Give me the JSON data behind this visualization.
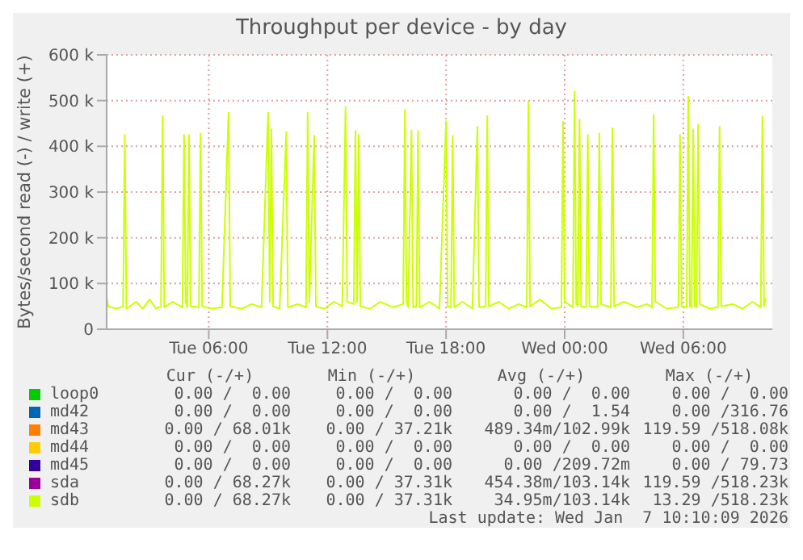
{
  "chart_data": {
    "type": "line",
    "title": "Throughput per device - by day",
    "ylabel": "Bytes/second read (-) / write (+)",
    "x": [
      "2026-01-06T00:50",
      "2026-01-06T00:55",
      "2026-01-06T01:20",
      "2026-01-06T01:40",
      "2026-01-06T01:45",
      "2026-01-06T01:50",
      "2026-01-06T02:20",
      "2026-01-06T02:40",
      "2026-01-06T03:00",
      "2026-01-06T03:20",
      "2026-01-06T03:35",
      "2026-01-06T03:40",
      "2026-01-06T03:45",
      "2026-01-06T04:10",
      "2026-01-06T04:40",
      "2026-01-06T04:45",
      "2026-01-06T04:50",
      "2026-01-06T04:55",
      "2026-01-06T05:00",
      "2026-01-06T05:05",
      "2026-01-06T05:30",
      "2026-01-06T05:35",
      "2026-01-06T05:40",
      "2026-01-06T06:10",
      "2026-01-06T06:40",
      "2026-01-06T07:00",
      "2026-01-06T07:05",
      "2026-01-06T07:40",
      "2026-01-06T08:10",
      "2026-01-06T08:40",
      "2026-01-06T09:00",
      "2026-01-06T09:05",
      "2026-01-06T09:10",
      "2026-01-06T09:15",
      "2026-01-06T09:35",
      "2026-01-06T09:55",
      "2026-01-06T10:00",
      "2026-01-06T10:30",
      "2026-01-06T10:55",
      "2026-01-06T11:00",
      "2026-01-06T11:05",
      "2026-01-06T11:20",
      "2026-01-06T11:25",
      "2026-01-06T11:50",
      "2026-01-06T12:20",
      "2026-01-06T12:45",
      "2026-01-06T12:55",
      "2026-01-06T13:00",
      "2026-01-06T13:20",
      "2026-01-06T13:25",
      "2026-01-06T13:30",
      "2026-01-06T13:35",
      "2026-01-06T13:40",
      "2026-01-06T14:10",
      "2026-01-06T14:40",
      "2026-01-06T15:20",
      "2026-01-06T15:50",
      "2026-01-06T15:55",
      "2026-01-06T16:00",
      "2026-01-06T16:05",
      "2026-01-06T16:15",
      "2026-01-06T16:20",
      "2026-01-06T16:30",
      "2026-01-06T16:35",
      "2026-01-06T16:40",
      "2026-01-06T17:10",
      "2026-01-06T17:40",
      "2026-01-06T18:00",
      "2026-01-06T18:05",
      "2026-01-06T18:15",
      "2026-01-06T18:20",
      "2026-01-06T18:25",
      "2026-01-06T18:50",
      "2026-01-06T19:20",
      "2026-01-06T19:35",
      "2026-01-06T19:40",
      "2026-01-06T20:00",
      "2026-01-06T20:05",
      "2026-01-06T20:10",
      "2026-01-06T20:40",
      "2026-01-06T21:10",
      "2026-01-06T21:40",
      "2026-01-06T22:05",
      "2026-01-06T22:10",
      "2026-01-06T22:15",
      "2026-01-06T22:45",
      "2026-01-06T23:20",
      "2026-01-06T23:50",
      "2026-01-06T23:55",
      "2026-01-07T00:00",
      "2026-01-07T00:25",
      "2026-01-07T00:30",
      "2026-01-07T00:35",
      "2026-01-07T00:40",
      "2026-01-07T00:45",
      "2026-01-07T00:50",
      "2026-01-07T01:05",
      "2026-01-07T01:10",
      "2026-01-07T01:15",
      "2026-01-07T01:40",
      "2026-01-07T01:45",
      "2026-01-07T01:50",
      "2026-01-07T02:20",
      "2026-01-07T02:25",
      "2026-01-07T02:30",
      "2026-01-07T03:00",
      "2026-01-07T03:40",
      "2026-01-07T04:10",
      "2026-01-07T04:25",
      "2026-01-07T04:30",
      "2026-01-07T04:35",
      "2026-01-07T05:10",
      "2026-01-07T05:45",
      "2026-01-07T05:50",
      "2026-01-07T05:55",
      "2026-01-07T06:10",
      "2026-01-07T06:15",
      "2026-01-07T06:20",
      "2026-01-07T06:25",
      "2026-01-07T06:30",
      "2026-01-07T06:35",
      "2026-01-07T06:40",
      "2026-01-07T06:45",
      "2026-01-07T06:50",
      "2026-01-07T07:20",
      "2026-01-07T07:45",
      "2026-01-07T07:50",
      "2026-01-07T07:55",
      "2026-01-07T08:30",
      "2026-01-07T09:00",
      "2026-01-07T09:30",
      "2026-01-07T09:55",
      "2026-01-07T10:00",
      "2026-01-07T10:05",
      "2026-01-07T10:10"
    ],
    "series": [
      {
        "name": "loop0",
        "color": "#00cc00",
        "values": [
          null,
          null,
          null,
          null,
          null,
          null,
          null,
          null,
          null,
          null,
          null,
          null,
          null,
          null,
          null,
          null,
          null,
          null,
          null,
          null,
          null,
          null,
          null,
          null,
          null,
          null,
          null,
          null,
          null,
          null,
          null,
          null,
          null,
          null,
          null,
          null,
          null,
          null,
          null,
          null,
          null,
          null,
          null,
          null,
          null,
          null,
          null,
          null,
          null,
          null,
          null,
          null,
          null,
          null,
          null,
          null,
          null,
          null,
          null,
          null,
          null,
          null,
          null,
          null,
          null,
          null,
          null,
          null,
          null,
          null,
          null,
          null,
          null,
          null,
          null,
          null,
          null,
          null,
          null,
          null,
          null,
          null,
          null,
          null,
          null,
          null,
          null,
          null,
          null,
          null,
          null,
          null,
          null,
          null,
          null,
          null,
          null,
          null,
          null,
          null,
          null,
          null,
          null,
          null,
          null,
          null,
          null,
          null,
          null,
          null,
          null,
          null,
          null,
          null,
          null,
          null,
          null,
          null,
          null,
          null,
          null,
          null,
          null,
          null,
          null,
          null,
          null,
          null,
          null,
          null,
          null,
          null,
          null,
          null,
          null
        ]
      },
      {
        "name": "md42",
        "color": "#0066b3",
        "values": [
          null,
          null,
          null,
          null,
          null,
          null,
          null,
          null,
          null,
          null,
          null,
          null,
          null,
          null,
          null,
          null,
          null,
          null,
          null,
          null,
          null,
          null,
          null,
          null,
          null,
          null,
          null,
          null,
          null,
          null,
          null,
          null,
          null,
          null,
          null,
          null,
          null,
          null,
          null,
          null,
          null,
          null,
          null,
          null,
          null,
          null,
          null,
          null,
          null,
          null,
          null,
          null,
          null,
          null,
          null,
          null,
          null,
          null,
          null,
          null,
          null,
          null,
          null,
          null,
          null,
          null,
          null,
          null,
          null,
          null,
          null,
          null,
          null,
          null,
          null,
          null,
          null,
          null,
          null,
          null,
          null,
          null,
          null,
          null,
          null,
          null,
          null,
          null,
          null,
          null,
          null,
          null,
          null,
          null,
          null,
          null,
          null,
          null,
          null,
          null,
          null,
          null,
          null,
          null,
          null,
          null,
          null,
          null,
          null,
          null,
          null,
          null,
          null,
          null,
          null,
          null,
          null,
          null,
          null,
          null,
          null,
          null,
          null,
          null,
          null,
          null,
          null,
          null,
          null,
          null,
          null,
          null,
          null,
          null,
          null
        ]
      },
      {
        "name": "md43",
        "color": "#ff8000",
        "values": [
          null,
          null,
          null,
          null,
          null,
          null,
          null,
          null,
          null,
          null,
          null,
          null,
          null,
          null,
          null,
          null,
          null,
          null,
          null,
          null,
          null,
          null,
          null,
          null,
          null,
          null,
          null,
          null,
          null,
          null,
          null,
          null,
          null,
          null,
          null,
          null,
          null,
          null,
          null,
          null,
          null,
          null,
          null,
          null,
          null,
          null,
          null,
          null,
          null,
          null,
          null,
          null,
          null,
          null,
          null,
          null,
          null,
          null,
          null,
          null,
          null,
          null,
          null,
          null,
          null,
          null,
          null,
          null,
          null,
          null,
          null,
          null,
          null,
          null,
          null,
          null,
          null,
          null,
          null,
          null,
          null,
          null,
          null,
          null,
          null,
          null,
          null,
          null,
          null,
          null,
          null,
          null,
          null,
          null,
          null,
          null,
          null,
          null,
          null,
          null,
          null,
          null,
          null,
          null,
          null,
          null,
          null,
          null,
          null,
          null,
          null,
          null,
          null,
          null,
          null,
          null,
          null,
          null,
          null,
          null,
          null,
          null,
          null,
          null,
          null,
          null,
          null,
          null,
          null,
          null,
          null,
          null,
          null,
          null,
          null
        ]
      },
      {
        "name": "md44",
        "color": "#ffcc00",
        "values": [
          null,
          null,
          null,
          null,
          null,
          null,
          null,
          null,
          null,
          null,
          null,
          null,
          null,
          null,
          null,
          null,
          null,
          null,
          null,
          null,
          null,
          null,
          null,
          null,
          null,
          null,
          null,
          null,
          null,
          null,
          null,
          null,
          null,
          null,
          null,
          null,
          null,
          null,
          null,
          null,
          null,
          null,
          null,
          null,
          null,
          null,
          null,
          null,
          null,
          null,
          null,
          null,
          null,
          null,
          null,
          null,
          null,
          null,
          null,
          null,
          null,
          null,
          null,
          null,
          null,
          null,
          null,
          null,
          null,
          null,
          null,
          null,
          null,
          null,
          null,
          null,
          null,
          null,
          null,
          null,
          null,
          null,
          null,
          null,
          null,
          null,
          null,
          null,
          null,
          null,
          null,
          null,
          null,
          null,
          null,
          null,
          null,
          null,
          null,
          null,
          null,
          null,
          null,
          null,
          null,
          null,
          null,
          null,
          null,
          null,
          null,
          null,
          null,
          null,
          null,
          null,
          null,
          null,
          null,
          null,
          null,
          null,
          null,
          null,
          null,
          null,
          null,
          null,
          null,
          null,
          null,
          null,
          null,
          null,
          null
        ]
      },
      {
        "name": "md45",
        "color": "#330099",
        "values": [
          null,
          null,
          null,
          null,
          null,
          null,
          null,
          null,
          null,
          null,
          null,
          null,
          null,
          null,
          null,
          null,
          null,
          null,
          null,
          null,
          null,
          null,
          null,
          null,
          null,
          null,
          null,
          null,
          null,
          null,
          null,
          null,
          null,
          null,
          null,
          null,
          null,
          null,
          null,
          null,
          null,
          null,
          null,
          null,
          null,
          null,
          null,
          null,
          null,
          null,
          null,
          null,
          null,
          null,
          null,
          null,
          null,
          null,
          null,
          null,
          null,
          null,
          null,
          null,
          null,
          null,
          null,
          null,
          null,
          null,
          null,
          null,
          null,
          null,
          null,
          null,
          null,
          null,
          null,
          null,
          null,
          null,
          null,
          null,
          null,
          null,
          null,
          null,
          null,
          null,
          null,
          null,
          null,
          null,
          null,
          null,
          null,
          null,
          null,
          null,
          null,
          null,
          null,
          null,
          null,
          null,
          null,
          null,
          null,
          null,
          null,
          null,
          null,
          null,
          null,
          null,
          null,
          null,
          null,
          null,
          null,
          null,
          null,
          null,
          null,
          null,
          null,
          null,
          null,
          null,
          null,
          null,
          null,
          null,
          null
        ]
      },
      {
        "name": "sda",
        "color": "#990099",
        "values": [
          null,
          null,
          null,
          null,
          null,
          null,
          null,
          null,
          null,
          null,
          null,
          null,
          null,
          null,
          null,
          null,
          null,
          null,
          null,
          null,
          null,
          null,
          null,
          null,
          null,
          null,
          null,
          null,
          null,
          null,
          null,
          null,
          null,
          null,
          null,
          null,
          null,
          null,
          null,
          null,
          null,
          null,
          null,
          null,
          null,
          null,
          null,
          null,
          null,
          null,
          null,
          null,
          null,
          null,
          null,
          null,
          null,
          null,
          null,
          null,
          null,
          null,
          null,
          null,
          null,
          null,
          null,
          null,
          null,
          null,
          null,
          null,
          null,
          null,
          null,
          null,
          null,
          null,
          null,
          null,
          null,
          null,
          null,
          null,
          null,
          null,
          null,
          null,
          null,
          null,
          null,
          null,
          null,
          null,
          null,
          null,
          null,
          null,
          null,
          null,
          null,
          null,
          null,
          null,
          null,
          null,
          null,
          null,
          null,
          null,
          null,
          null,
          null,
          null,
          null,
          null,
          null,
          null,
          null,
          null,
          null,
          null,
          null,
          null,
          null,
          null,
          null,
          null,
          null,
          null,
          null,
          null,
          null,
          null,
          null
        ]
      },
      {
        "name": "sdb",
        "color": "#ccff00",
        "values": [
          70000,
          50000,
          45000,
          50000,
          425000,
          45000,
          60000,
          45000,
          65000,
          45000,
          50000,
          466000,
          48000,
          60000,
          48000,
          425000,
          60000,
          48000,
          425000,
          50000,
          48000,
          428000,
          50000,
          45000,
          48000,
          474000,
          50000,
          45000,
          55000,
          48000,
          474000,
          60000,
          437000,
          50000,
          45000,
          432000,
          48000,
          55000,
          48000,
          474000,
          60000,
          423000,
          50000,
          45000,
          60000,
          50000,
          486000,
          60000,
          55000,
          434000,
          60000,
          425000,
          50000,
          45000,
          60000,
          48000,
          55000,
          480000,
          60000,
          48000,
          434000,
          48000,
          50000,
          434000,
          48000,
          60000,
          45000,
          455000,
          50000,
          48000,
          423000,
          48000,
          60000,
          45000,
          443000,
          48000,
          50000,
          466000,
          50000,
          60000,
          45000,
          55000,
          48000,
          497000,
          50000,
          65000,
          45000,
          48000,
          454000,
          60000,
          48000,
          520000,
          55000,
          50000,
          459000,
          50000,
          48000,
          425000,
          50000,
          48000,
          428000,
          55000,
          48000,
          440000,
          50000,
          60000,
          48000,
          55000,
          48000,
          469000,
          60000,
          45000,
          48000,
          425000,
          50000,
          48000,
          509000,
          50000,
          48000,
          437000,
          50000,
          48000,
          448000,
          55000,
          45000,
          48000,
          443000,
          50000,
          55000,
          45000,
          60000,
          48000,
          466000,
          50000,
          68000
        ]
      }
    ],
    "xlim": [
      "2026-01-06T00:50",
      "2026-01-07T10:30"
    ],
    "xticks": [
      {
        "value": "2026-01-06T06:00",
        "label": "Tue 06:00"
      },
      {
        "value": "2026-01-06T12:00",
        "label": "Tue 12:00"
      },
      {
        "value": "2026-01-06T18:00",
        "label": "Tue 18:00"
      },
      {
        "value": "2026-01-07T00:00",
        "label": "Wed 00:00"
      },
      {
        "value": "2026-01-07T06:00",
        "label": "Wed 06:00"
      }
    ],
    "ylim": [
      0,
      600000
    ],
    "yticks": [
      {
        "value": 0,
        "label": "0"
      },
      {
        "value": 100000,
        "label": "100 k"
      },
      {
        "value": 200000,
        "label": "200 k"
      },
      {
        "value": 300000,
        "label": "300 k"
      },
      {
        "value": 400000,
        "label": "400 k"
      },
      {
        "value": 500000,
        "label": "500 k"
      },
      {
        "value": 600000,
        "label": "600 k"
      }
    ],
    "grid": true,
    "legend": "bottom",
    "annotations": [
      "Cur (-/+)",
      "Min (-/+)",
      "Avg (-/+)",
      "Max (-/+)",
      "0.00 /  0.00",
      "0.00 /  0.00",
      "0.00 /  0.00",
      "0.00 /  0.00",
      "0.00 /  0.00",
      "0.00 /  0.00",
      "0.00 /  1.54",
      "0.00 /316.76",
      "0.00 / 68.01k",
      "0.00 / 37.21k",
      "489.34m/102.99k",
      "119.59 /518.08k",
      "0.00 /  0.00",
      "0.00 /  0.00",
      "0.00 /  0.00",
      "0.00 /  0.00",
      "0.00 /  0.00",
      "0.00 /  0.00",
      "0.00 /209.72m",
      "0.00 / 79.73",
      "0.00 / 68.27k",
      "0.00 / 37.31k",
      "454.38m/103.14k",
      "119.59 /518.23k",
      "0.00 / 68.27k",
      "0.00 / 37.31k",
      "34.95m/103.14k",
      "13.29 /518.23k",
      "Last update: Wed Jan  7 10:10:09 2026"
    ]
  }
}
